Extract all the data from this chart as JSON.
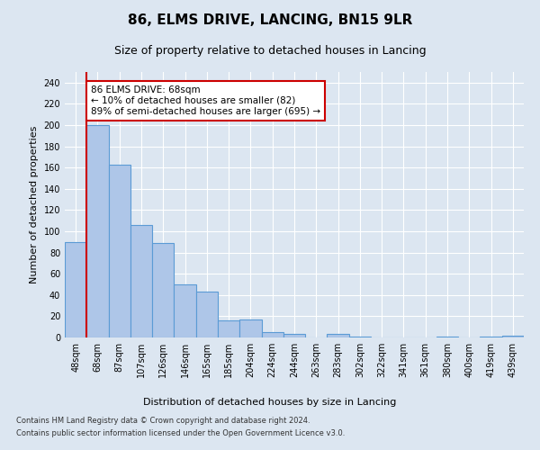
{
  "title": "86, ELMS DRIVE, LANCING, BN15 9LR",
  "subtitle": "Size of property relative to detached houses in Lancing",
  "xlabel": "Distribution of detached houses by size in Lancing",
  "ylabel": "Number of detached properties",
  "footnote1": "Contains HM Land Registry data © Crown copyright and database right 2024.",
  "footnote2": "Contains public sector information licensed under the Open Government Licence v3.0.",
  "categories": [
    "48sqm",
    "68sqm",
    "87sqm",
    "107sqm",
    "126sqm",
    "146sqm",
    "165sqm",
    "185sqm",
    "204sqm",
    "224sqm",
    "244sqm",
    "263sqm",
    "283sqm",
    "302sqm",
    "322sqm",
    "341sqm",
    "361sqm",
    "380sqm",
    "400sqm",
    "419sqm",
    "439sqm"
  ],
  "values": [
    90,
    200,
    163,
    106,
    89,
    50,
    43,
    16,
    17,
    5,
    3,
    0,
    3,
    1,
    0,
    0,
    0,
    1,
    0,
    1,
    2
  ],
  "bar_color": "#aec6e8",
  "bar_edge_color": "#5b9bd5",
  "property_line_col_index": 1,
  "property_line_color": "#cc0000",
  "annotation_text": "86 ELMS DRIVE: 68sqm\n← 10% of detached houses are smaller (82)\n89% of semi-detached houses are larger (695) →",
  "annotation_box_color": "#ffffff",
  "annotation_box_edge_color": "#cc0000",
  "ylim": [
    0,
    250
  ],
  "yticks": [
    0,
    20,
    40,
    60,
    80,
    100,
    120,
    140,
    160,
    180,
    200,
    220,
    240
  ],
  "background_color": "#dce6f1",
  "plot_bg_color": "#dce6f1",
  "grid_color": "#ffffff",
  "title_fontsize": 11,
  "subtitle_fontsize": 9,
  "axis_label_fontsize": 8,
  "tick_fontsize": 7,
  "annotation_fontsize": 7.5
}
